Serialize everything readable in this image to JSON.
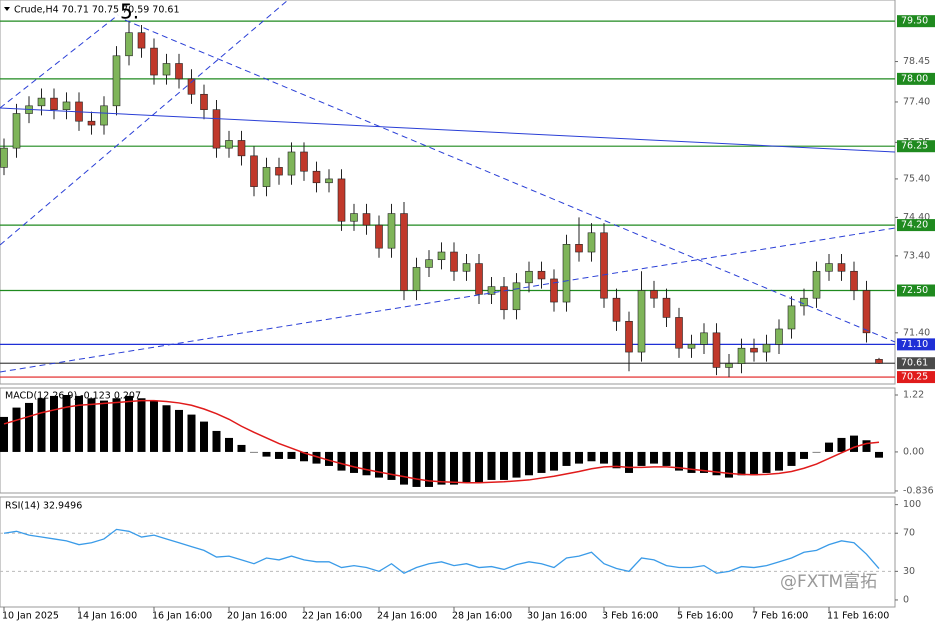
{
  "chart_data": [
    {
      "type": "candlestick",
      "title": "Crude,H4 70.71 70.75 70.59 70.61",
      "annotation": "5.",
      "categories": [
        "10 Jan 2025",
        null,
        null,
        null,
        null,
        null,
        "14 Jan 16:00",
        null,
        null,
        null,
        null,
        null,
        "16 Jan 16:00",
        null,
        null,
        null,
        null,
        null,
        "20 Jan 16:00",
        null,
        null,
        null,
        null,
        null,
        "22 Jan 16:00",
        null,
        null,
        null,
        null,
        null,
        "24 Jan 16:00",
        null,
        null,
        null,
        null,
        null,
        "28 Jan 16:00",
        null,
        null,
        null,
        null,
        null,
        "30 Jan 16:00",
        null,
        null,
        null,
        null,
        null,
        "3 Feb 16:00",
        null,
        null,
        null,
        null,
        null,
        "5 Feb 16:00",
        null,
        null,
        null,
        null,
        null,
        "7 Feb 16:00",
        null,
        null,
        null,
        null,
        null,
        "11 Feb 16:00",
        null,
        null,
        null,
        null
      ],
      "open": [
        75.7,
        76.2,
        77.1,
        77.3,
        77.5,
        77.2,
        77.4,
        76.9,
        76.8,
        77.3,
        78.6,
        79.2,
        78.8,
        78.1,
        78.4,
        78.0,
        77.6,
        77.2,
        76.2,
        76.4,
        76.0,
        75.2,
        75.7,
        75.5,
        76.1,
        75.6,
        75.3,
        75.4,
        74.3,
        74.5,
        74.2,
        73.6,
        74.5,
        72.5,
        73.1,
        73.3,
        73.5,
        73.0,
        73.2,
        72.4,
        72.6,
        72.0,
        72.7,
        73.0,
        72.8,
        72.2,
        73.7,
        73.5,
        74.0,
        72.3,
        71.7,
        70.9,
        72.5,
        72.3,
        71.8,
        71.0,
        71.1,
        71.4,
        70.5,
        70.6,
        71.0,
        70.9,
        71.1,
        71.5,
        72.1,
        72.3,
        73.0,
        73.2,
        73.0,
        72.5,
        70.71
      ],
      "high": [
        76.45,
        77.35,
        77.55,
        77.75,
        77.75,
        77.65,
        77.65,
        77.15,
        77.55,
        78.85,
        79.5,
        79.4,
        79.05,
        78.65,
        78.65,
        78.25,
        77.85,
        77.45,
        76.65,
        76.65,
        76.25,
        75.95,
        75.95,
        76.35,
        76.35,
        75.85,
        75.65,
        75.65,
        74.75,
        74.75,
        74.45,
        74.75,
        74.8,
        73.35,
        73.55,
        73.75,
        73.75,
        73.45,
        73.45,
        72.85,
        72.85,
        72.95,
        73.25,
        73.25,
        73.05,
        73.95,
        74.4,
        74.25,
        74.25,
        72.55,
        71.95,
        73.0,
        72.75,
        72.55,
        72.05,
        71.35,
        71.65,
        71.65,
        70.85,
        71.25,
        71.25,
        71.35,
        71.75,
        72.35,
        72.55,
        73.25,
        73.45,
        73.45,
        73.25,
        72.75,
        70.75
      ],
      "low": [
        75.5,
        75.95,
        76.85,
        77.05,
        76.95,
        76.95,
        76.65,
        76.55,
        76.55,
        77.05,
        78.35,
        78.55,
        77.85,
        77.85,
        77.75,
        77.35,
        76.95,
        75.95,
        75.95,
        75.75,
        74.95,
        74.95,
        75.25,
        75.25,
        75.35,
        75.05,
        75.05,
        74.05,
        74.05,
        73.95,
        73.35,
        73.35,
        72.25,
        72.25,
        72.85,
        73.05,
        72.75,
        72.75,
        72.15,
        72.15,
        71.75,
        71.75,
        72.45,
        72.55,
        71.95,
        71.95,
        73.25,
        73.25,
        72.05,
        71.45,
        70.4,
        70.65,
        72.05,
        71.55,
        70.75,
        70.75,
        70.85,
        70.3,
        70.25,
        70.35,
        70.65,
        70.65,
        70.85,
        71.25,
        71.85,
        72.05,
        72.75,
        72.75,
        72.25,
        71.15,
        70.59
      ],
      "close": [
        76.2,
        77.1,
        77.3,
        77.5,
        77.2,
        77.4,
        76.9,
        76.8,
        77.3,
        78.6,
        79.2,
        78.8,
        78.1,
        78.4,
        78.0,
        77.6,
        77.2,
        76.2,
        76.4,
        76.0,
        75.2,
        75.7,
        75.5,
        76.1,
        75.6,
        75.3,
        75.4,
        74.3,
        74.5,
        74.2,
        73.6,
        74.5,
        72.5,
        73.1,
        73.3,
        73.5,
        73.0,
        73.2,
        72.4,
        72.6,
        72.0,
        72.7,
        73.0,
        72.8,
        72.2,
        73.7,
        73.5,
        74.0,
        72.3,
        71.7,
        70.9,
        72.5,
        72.3,
        71.8,
        71.0,
        71.1,
        71.4,
        70.5,
        70.6,
        71.0,
        70.9,
        71.1,
        71.5,
        72.1,
        72.3,
        73.0,
        73.2,
        73.0,
        72.5,
        71.4,
        70.61
      ],
      "up_color": "#7fb55a",
      "down_color": "#c0392b",
      "ylim": [
        70.07,
        80.05
      ],
      "yticks": [
        78.45,
        {
          "value": 77.4,
          "label": "77.40"
        },
        76.35,
        {
          "value": 75.4,
          "label": "75.40"
        },
        {
          "value": 74.4,
          "label": "74.40"
        },
        {
          "value": 73.4,
          "label": "73.40"
        },
        {
          "value": 71.4,
          "label": "71.40"
        }
      ],
      "levels": [
        {
          "value": 79.5,
          "label": "79.50",
          "color": "#1f8a1f"
        },
        {
          "value": 78.0,
          "label": "78.00",
          "color": "#1f8a1f"
        },
        {
          "value": 76.25,
          "label": "76.25",
          "color": "#1f8a1f"
        },
        {
          "value": 74.2,
          "label": "74.20",
          "color": "#1f8a1f"
        },
        {
          "value": 72.5,
          "label": "72.50",
          "color": "#1f8a1f"
        },
        {
          "value": 71.1,
          "label": "71.10",
          "color": "#1f2fd6"
        },
        {
          "value": 70.61,
          "label": "70.61",
          "color": "#4a4a4a"
        },
        {
          "value": 70.25,
          "label": "70.25",
          "color": "#e01b1b"
        }
      ]
    },
    {
      "type": "macd",
      "title": "MACD(12,26,9) -0.123 0.207",
      "histogram": {
        "color": "#000000",
        "values": [
          0.75,
          0.95,
          1.05,
          1.15,
          1.2,
          1.22,
          1.2,
          1.15,
          1.1,
          1.15,
          1.2,
          1.15,
          1.1,
          1.0,
          0.9,
          0.8,
          0.65,
          0.45,
          0.3,
          0.15,
          0.0,
          -0.1,
          -0.15,
          -0.15,
          -0.2,
          -0.25,
          -0.3,
          -0.4,
          -0.45,
          -0.5,
          -0.55,
          -0.6,
          -0.7,
          -0.75,
          -0.75,
          -0.7,
          -0.7,
          -0.65,
          -0.65,
          -0.6,
          -0.6,
          -0.55,
          -0.5,
          -0.45,
          -0.4,
          -0.3,
          -0.25,
          -0.2,
          -0.25,
          -0.35,
          -0.45,
          -0.3,
          -0.25,
          -0.3,
          -0.4,
          -0.45,
          -0.45,
          -0.5,
          -0.55,
          -0.5,
          -0.5,
          -0.45,
          -0.4,
          -0.3,
          -0.15,
          0.0,
          0.2,
          0.3,
          0.35,
          0.25,
          -0.123
        ]
      },
      "signal": {
        "color": "#e01b1b",
        "values": [
          0.6,
          0.68,
          0.76,
          0.84,
          0.9,
          0.96,
          1.0,
          1.02,
          1.04,
          1.06,
          1.08,
          1.1,
          1.1,
          1.08,
          1.05,
          1.0,
          0.92,
          0.82,
          0.7,
          0.55,
          0.42,
          0.3,
          0.18,
          0.08,
          -0.02,
          -0.1,
          -0.18,
          -0.25,
          -0.32,
          -0.38,
          -0.43,
          -0.48,
          -0.53,
          -0.58,
          -0.62,
          -0.64,
          -0.65,
          -0.66,
          -0.66,
          -0.65,
          -0.64,
          -0.62,
          -0.6,
          -0.56,
          -0.52,
          -0.47,
          -0.42,
          -0.36,
          -0.32,
          -0.31,
          -0.33,
          -0.33,
          -0.32,
          -0.32,
          -0.34,
          -0.37,
          -0.4,
          -0.43,
          -0.46,
          -0.48,
          -0.49,
          -0.48,
          -0.46,
          -0.42,
          -0.35,
          -0.26,
          -0.14,
          -0.02,
          0.1,
          0.18,
          0.207
        ]
      },
      "ylim": [
        -0.88,
        1.37
      ],
      "yticks": [
        1.22,
        {
          "value": 0,
          "label": "0.00"
        },
        -0.836
      ]
    },
    {
      "type": "line",
      "title": "RSI(14) 32.9496",
      "color": "#3a9be8",
      "values": [
        70,
        72,
        68,
        66,
        64,
        62,
        58,
        60,
        64,
        74,
        72,
        66,
        68,
        64,
        60,
        56,
        52,
        45,
        46,
        42,
        38,
        44,
        42,
        46,
        42,
        40,
        40,
        34,
        36,
        34,
        30,
        38,
        28,
        34,
        38,
        40,
        36,
        38,
        34,
        35,
        32,
        37,
        40,
        38,
        34,
        44,
        46,
        50,
        38,
        33,
        30,
        44,
        42,
        36,
        34,
        34,
        36,
        28,
        30,
        35,
        34,
        36,
        40,
        44,
        50,
        52,
        58,
        62,
        60,
        48,
        32.9496
      ],
      "ylim": [
        -7.4,
        108
      ],
      "yticks": [
        100,
        70,
        30,
        0
      ],
      "grid": [
        70,
        30
      ]
    }
  ],
  "watermark": "@FXTM富拓"
}
